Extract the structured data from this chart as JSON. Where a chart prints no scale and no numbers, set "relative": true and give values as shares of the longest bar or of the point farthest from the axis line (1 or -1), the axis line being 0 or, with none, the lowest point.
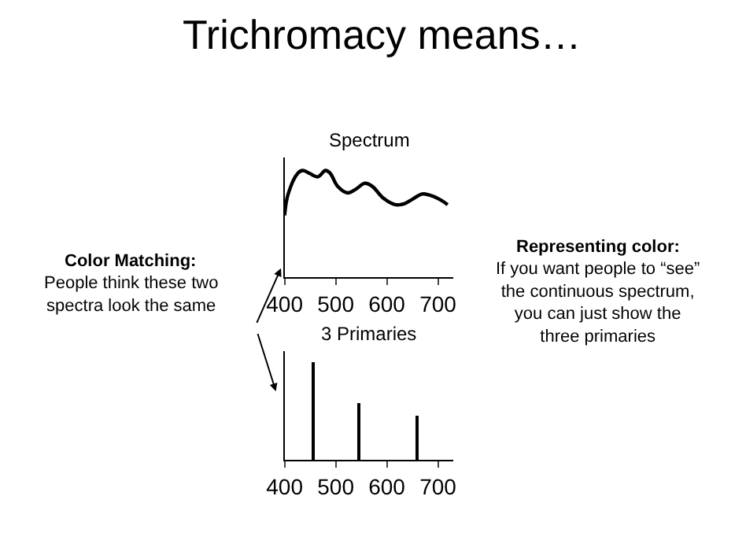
{
  "chart_data": [
    {
      "type": "line",
      "title": "Trichromacy means…",
      "subtitle": "Spectrum",
      "relative": true,
      "tick_labels": "x",
      "xlim": [
        400,
        730
      ],
      "xticks": [
        400,
        500,
        600,
        700
      ],
      "series": [
        {
          "color": "#000000",
          "x": [
            400,
            407,
            426,
            436,
            450,
            465,
            480,
            489,
            504,
            523,
            538,
            557,
            572,
            591,
            616,
            635,
            650,
            669,
            683,
            703,
            719
          ],
          "values": [
            0.58,
            0.78,
            0.975,
            1.0,
            0.97,
            0.94,
            1.0,
            0.975,
            0.85,
            0.79,
            0.82,
            0.88,
            0.85,
            0.75,
            0.68,
            0.69,
            0.73,
            0.78,
            0.77,
            0.73,
            0.68
          ]
        }
      ],
      "annotations": [
        "Color Matching:",
        "People think these two\nspectra look the same",
        "Representing color:",
        "If you want people to “see”\nthe continuous spectrum,\nyou can just show the\nthree primaries"
      ]
    },
    {
      "type": "bar",
      "subtitle": "3 Primaries",
      "relative": true,
      "tick_labels": "x",
      "xlim": [
        400,
        730
      ],
      "xticks": [
        400,
        500,
        600,
        700
      ],
      "series": [
        {
          "color": "#000000",
          "x": [
            455,
            546,
            660
          ],
          "values": [
            1.0,
            0.58,
            0.45
          ]
        }
      ]
    }
  ]
}
